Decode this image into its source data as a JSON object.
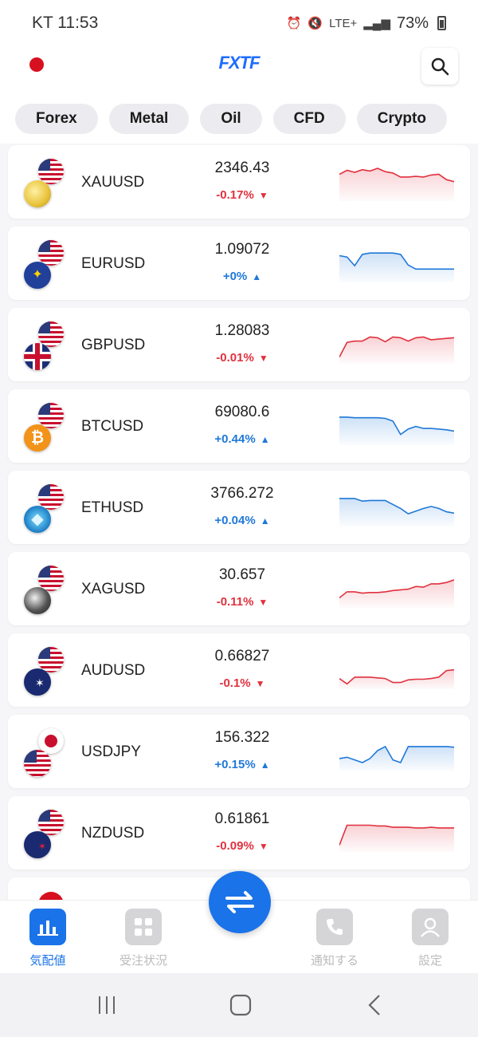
{
  "status_bar": {
    "carrier_time": "KT 11:53",
    "network": "LTE+",
    "battery": "73%"
  },
  "header": {
    "logo": "FXTF"
  },
  "tabs": [
    {
      "label": "Forex"
    },
    {
      "label": "Metal"
    },
    {
      "label": "Oil"
    },
    {
      "label": "CFD"
    },
    {
      "label": "Crypto"
    }
  ],
  "quotes": [
    {
      "symbol": "XAUUSD",
      "price": "2346.43",
      "change": "-0.17%",
      "direction": "down",
      "icon": "gold-icon",
      "spark": [
        70,
        76,
        73,
        77,
        75,
        79,
        74,
        72,
        66,
        66,
        67,
        66,
        69,
        70,
        62,
        59
      ]
    },
    {
      "symbol": "EURUSD",
      "price": "1.09072",
      "change": "+0%",
      "direction": "up",
      "icon": "eu-flag-icon",
      "spark": [
        70,
        68,
        55,
        72,
        74,
        74,
        74,
        74,
        72,
        56,
        50,
        50,
        50,
        50,
        50,
        50
      ]
    },
    {
      "symbol": "GBPUSD",
      "price": "1.28083",
      "change": "-0.01%",
      "direction": "down",
      "icon": "gb-flag-icon",
      "spark": [
        40,
        62,
        64,
        64,
        70,
        69,
        63,
        70,
        69,
        64,
        69,
        70,
        66,
        67,
        68,
        69
      ]
    },
    {
      "symbol": "BTCUSD",
      "price": "69080.6",
      "change": "+0.44%",
      "direction": "up",
      "icon": "bitcoin-icon",
      "spark": [
        72,
        72,
        71,
        71,
        71,
        71,
        70,
        66,
        46,
        54,
        58,
        55,
        55,
        54,
        53,
        51
      ]
    },
    {
      "symbol": "ETHUSD",
      "price": "3766.272",
      "change": "+0.04%",
      "direction": "up",
      "icon": "ethereum-icon",
      "spark": [
        72,
        72,
        72,
        68,
        69,
        69,
        69,
        63,
        57,
        49,
        53,
        57,
        60,
        57,
        52,
        50
      ]
    },
    {
      "symbol": "XAGUSD",
      "price": "30.657",
      "change": "-0.11%",
      "direction": "down",
      "icon": "silver-icon",
      "spark": [
        45,
        54,
        54,
        52,
        53,
        53,
        54,
        56,
        57,
        58,
        62,
        61,
        66,
        66,
        68,
        72
      ]
    },
    {
      "symbol": "AUDUSD",
      "price": "0.66827",
      "change": "-0.1%",
      "direction": "down",
      "icon": "au-flag-icon",
      "spark": [
        46,
        38,
        48,
        48,
        48,
        47,
        46,
        40,
        40,
        44,
        45,
        45,
        46,
        48,
        58,
        59
      ]
    },
    {
      "symbol": "USDJPY",
      "price": "156.322",
      "change": "+0.15%",
      "direction": "up",
      "icon": "jp-flag-icon",
      "spark": [
        48,
        50,
        46,
        42,
        48,
        60,
        66,
        46,
        42,
        66,
        66,
        66,
        66,
        66,
        66,
        65
      ]
    },
    {
      "symbol": "NZDUSD",
      "price": "0.61861",
      "change": "-0.09%",
      "direction": "down",
      "icon": "nz-flag-icon",
      "spark": [
        40,
        70,
        70,
        70,
        70,
        69,
        69,
        67,
        67,
        67,
        66,
        66,
        67,
        66,
        66,
        66
      ]
    }
  ],
  "bottom_nav": [
    {
      "label": "気配値",
      "icon": "chart-icon",
      "active": true
    },
    {
      "label": "受注状況",
      "icon": "grid-icon",
      "active": false
    },
    {
      "label": "通知する",
      "icon": "phone-icon",
      "active": false
    },
    {
      "label": "設定",
      "icon": "user-icon",
      "active": false
    }
  ],
  "colors": {
    "accent": "#1a73e8",
    "down": "#e0313e",
    "up": "#1f78d8"
  }
}
